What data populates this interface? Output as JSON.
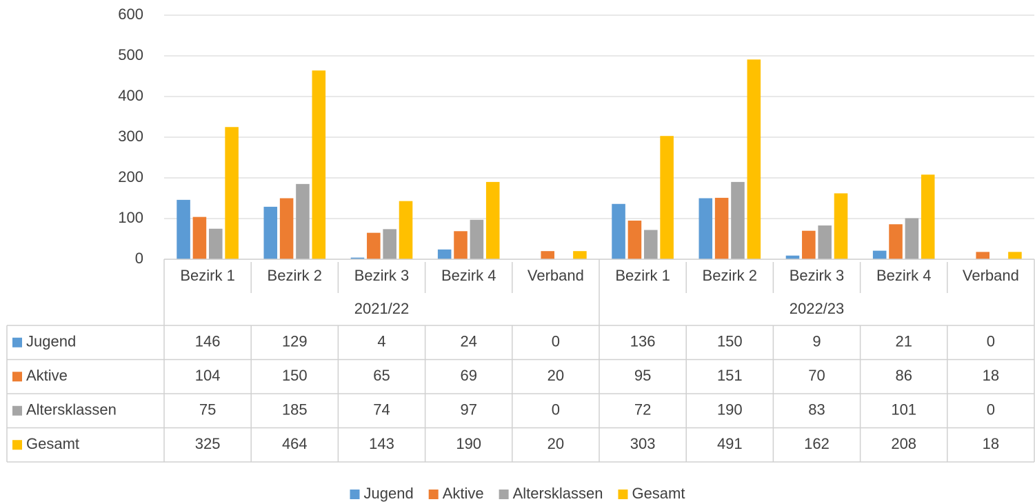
{
  "chart_data": {
    "type": "bar",
    "categories": [
      "Bezirk 1",
      "Bezirk 2",
      "Bezirk 3",
      "Bezirk 4",
      "Verband",
      "Bezirk 1",
      "Bezirk 2",
      "Bezirk 3",
      "Bezirk 4",
      "Verband"
    ],
    "category_groups": [
      "2021/22",
      "2022/23"
    ],
    "series": [
      {
        "name": "Jugend",
        "color": "#5b9bd5",
        "values": [
          146,
          129,
          4,
          24,
          0,
          136,
          150,
          9,
          21,
          0
        ]
      },
      {
        "name": "Aktive",
        "color": "#ed7d31",
        "values": [
          104,
          150,
          65,
          69,
          20,
          95,
          151,
          70,
          86,
          18
        ]
      },
      {
        "name": "Altersklassen",
        "color": "#a5a5a5",
        "values": [
          75,
          185,
          74,
          97,
          0,
          72,
          190,
          83,
          101,
          0
        ]
      },
      {
        "name": "Gesamt",
        "color": "#ffc000",
        "values": [
          325,
          464,
          143,
          190,
          20,
          303,
          491,
          162,
          208,
          18
        ]
      }
    ],
    "ylim": [
      0,
      600
    ],
    "yticks": [
      0,
      100,
      200,
      300,
      400,
      500,
      600
    ],
    "grid": true,
    "legend": "bottom",
    "data_table": true
  }
}
